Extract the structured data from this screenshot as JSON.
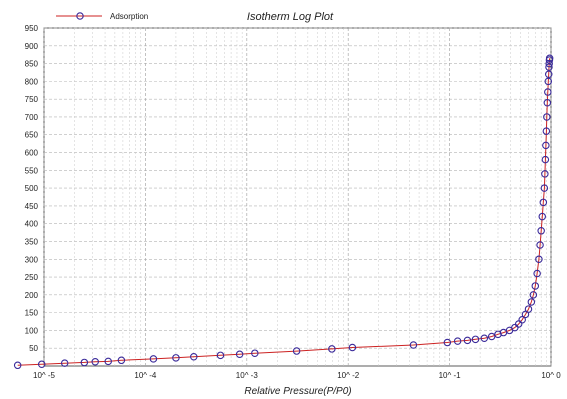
{
  "chart_data": {
    "type": "line",
    "title": "Isotherm Log Plot",
    "xlabel": "Relative Pressure(P/P0)",
    "ylabel": "",
    "x_scale": "log",
    "xlim": [
      1e-05,
      1
    ],
    "ylim": [
      0,
      950
    ],
    "x_tick_labels": [
      "10^ -5",
      "10^ -4",
      "10^ -3",
      "10^ -2",
      "10^ -1",
      "10^ 0"
    ],
    "y_ticks": [
      50,
      100,
      150,
      200,
      250,
      300,
      350,
      400,
      450,
      500,
      550,
      600,
      650,
      700,
      750,
      800,
      850,
      900,
      950
    ],
    "grid": true,
    "legend_position": "top-left",
    "series": [
      {
        "name": "Adsorption",
        "color": "#cc2222",
        "marker_color": "#3a2a9a",
        "marker": "circle",
        "x": [
          5.5e-06,
          9.5e-06,
          1.6e-05,
          2.5e-05,
          3.2e-05,
          4.3e-05,
          5.8e-05,
          0.00012,
          0.0002,
          0.0003,
          0.00055,
          0.00085,
          0.0012,
          0.0031,
          0.0069,
          0.011,
          0.044,
          0.095,
          0.12,
          0.15,
          0.18,
          0.22,
          0.26,
          0.3,
          0.34,
          0.39,
          0.44,
          0.48,
          0.52,
          0.56,
          0.6,
          0.64,
          0.67,
          0.7,
          0.73,
          0.76,
          0.78,
          0.8,
          0.82,
          0.84,
          0.86,
          0.87,
          0.88,
          0.89,
          0.9,
          0.91,
          0.92,
          0.93,
          0.94,
          0.95,
          0.955,
          0.96,
          0.965,
          0.97
        ],
        "y": [
          2,
          5,
          8,
          10,
          12,
          13,
          16,
          20,
          23,
          26,
          30,
          33,
          36,
          42,
          48,
          52,
          59,
          66,
          70,
          72,
          75,
          78,
          83,
          89,
          94,
          100,
          108,
          118,
          130,
          145,
          160,
          180,
          200,
          225,
          260,
          300,
          340,
          380,
          420,
          460,
          500,
          540,
          580,
          620,
          660,
          700,
          740,
          770,
          800,
          820,
          840,
          850,
          860,
          865
        ]
      }
    ]
  }
}
